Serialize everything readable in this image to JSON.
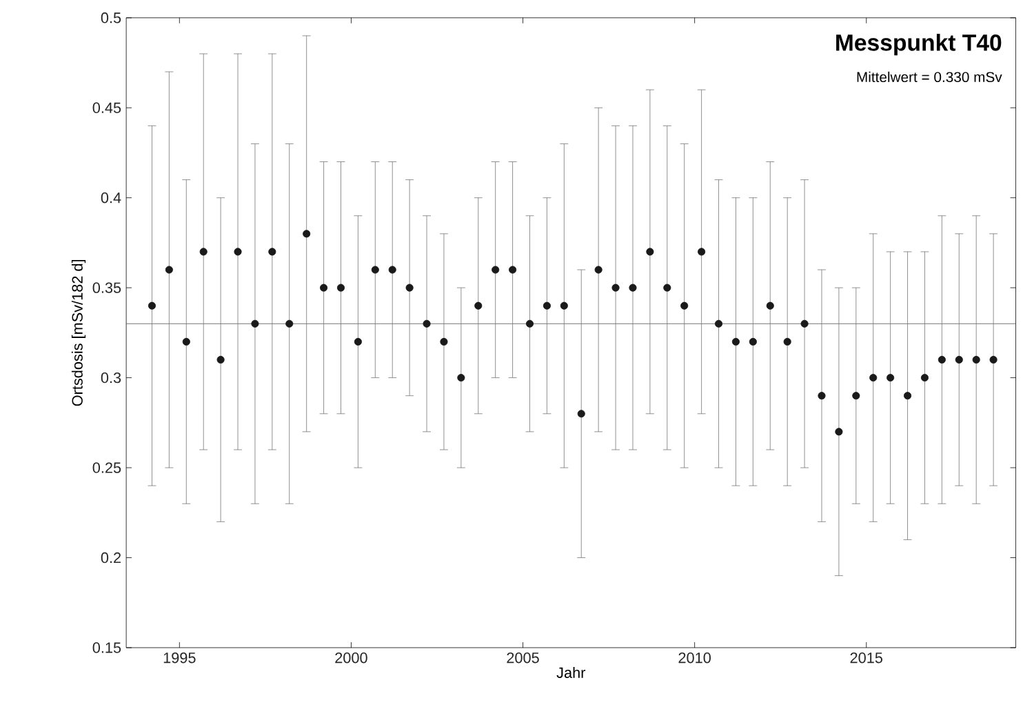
{
  "chart_data": {
    "type": "scatter",
    "title": "Messpunkt T40",
    "subtitle": "Mittelwert = 0.330 mSv",
    "xlabel": "Jahr",
    "ylabel": "Ortsdosis [mSv/182 d]",
    "x": [
      1994.2,
      1994.7,
      1995.2,
      1995.7,
      1996.2,
      1996.7,
      1997.2,
      1997.7,
      1998.2,
      1998.7,
      1999.2,
      1999.7,
      2000.2,
      2000.7,
      2001.2,
      2001.7,
      2002.2,
      2002.7,
      2003.2,
      2003.7,
      2004.2,
      2004.7,
      2005.2,
      2005.7,
      2006.2,
      2006.7,
      2007.2,
      2007.7,
      2008.2,
      2008.7,
      2009.2,
      2009.7,
      2010.2,
      2010.7,
      2011.2,
      2011.7,
      2012.2,
      2012.7,
      2013.2,
      2013.7,
      2014.2,
      2014.7,
      2015.2,
      2015.7,
      2016.2,
      2016.7,
      2017.2,
      2017.7,
      2018.2,
      2018.7
    ],
    "series": [
      {
        "color": "#1a1a1a",
        "values": [
          0.34,
          0.36,
          0.32,
          0.37,
          0.31,
          0.37,
          0.33,
          0.37,
          0.33,
          0.38,
          0.35,
          0.35,
          0.32,
          0.36,
          0.36,
          0.35,
          0.33,
          0.32,
          0.3,
          0.34,
          0.36,
          0.36,
          0.33,
          0.34,
          0.34,
          0.28,
          0.36,
          0.35,
          0.35,
          0.37,
          0.35,
          0.34,
          0.37,
          0.33,
          0.32,
          0.32,
          0.34,
          0.32,
          0.33,
          0.29,
          0.27,
          0.29,
          0.3,
          0.3,
          0.29,
          0.3,
          0.31,
          0.31,
          0.31,
          0.31
        ],
        "errors": [
          [
            0.24,
            0.44
          ],
          [
            0.25,
            0.47
          ],
          [
            0.23,
            0.41
          ],
          [
            0.26,
            0.48
          ],
          [
            0.22,
            0.4
          ],
          [
            0.26,
            0.48
          ],
          [
            0.23,
            0.43
          ],
          [
            0.26,
            0.48
          ],
          [
            0.23,
            0.43
          ],
          [
            0.27,
            0.49
          ],
          [
            0.28,
            0.42
          ],
          [
            0.28,
            0.42
          ],
          [
            0.25,
            0.39
          ],
          [
            0.3,
            0.42
          ],
          [
            0.3,
            0.42
          ],
          [
            0.29,
            0.41
          ],
          [
            0.27,
            0.39
          ],
          [
            0.26,
            0.38
          ],
          [
            0.25,
            0.35
          ],
          [
            0.28,
            0.4
          ],
          [
            0.3,
            0.42
          ],
          [
            0.3,
            0.42
          ],
          [
            0.27,
            0.39
          ],
          [
            0.28,
            0.4
          ],
          [
            0.25,
            0.43
          ],
          [
            0.2,
            0.36
          ],
          [
            0.27,
            0.45
          ],
          [
            0.26,
            0.44
          ],
          [
            0.26,
            0.44
          ],
          [
            0.28,
            0.46
          ],
          [
            0.26,
            0.44
          ],
          [
            0.25,
            0.43
          ],
          [
            0.28,
            0.46
          ],
          [
            0.25,
            0.41
          ],
          [
            0.24,
            0.4
          ],
          [
            0.24,
            0.4
          ],
          [
            0.26,
            0.42
          ],
          [
            0.24,
            0.4
          ],
          [
            0.25,
            0.41
          ],
          [
            0.22,
            0.36
          ],
          [
            0.19,
            0.35
          ],
          [
            0.23,
            0.35
          ],
          [
            0.22,
            0.38
          ],
          [
            0.23,
            0.37
          ],
          [
            0.21,
            0.37
          ],
          [
            0.23,
            0.37
          ],
          [
            0.23,
            0.39
          ],
          [
            0.24,
            0.38
          ],
          [
            0.23,
            0.39
          ],
          [
            0.24,
            0.38
          ]
        ]
      }
    ],
    "xlim": [
      1993.45,
      2019.35
    ],
    "ylim": [
      0.15,
      0.5
    ],
    "xticks": [
      1995,
      2000,
      2005,
      2010,
      2015
    ],
    "yticks": [
      0.15,
      0.2,
      0.25,
      0.3,
      0.35,
      0.4,
      0.45,
      0.5
    ],
    "ref_lines": [
      {
        "axis": "y",
        "value": 0.33,
        "color": "#555555"
      }
    ],
    "marker": "circle",
    "grid": false
  }
}
